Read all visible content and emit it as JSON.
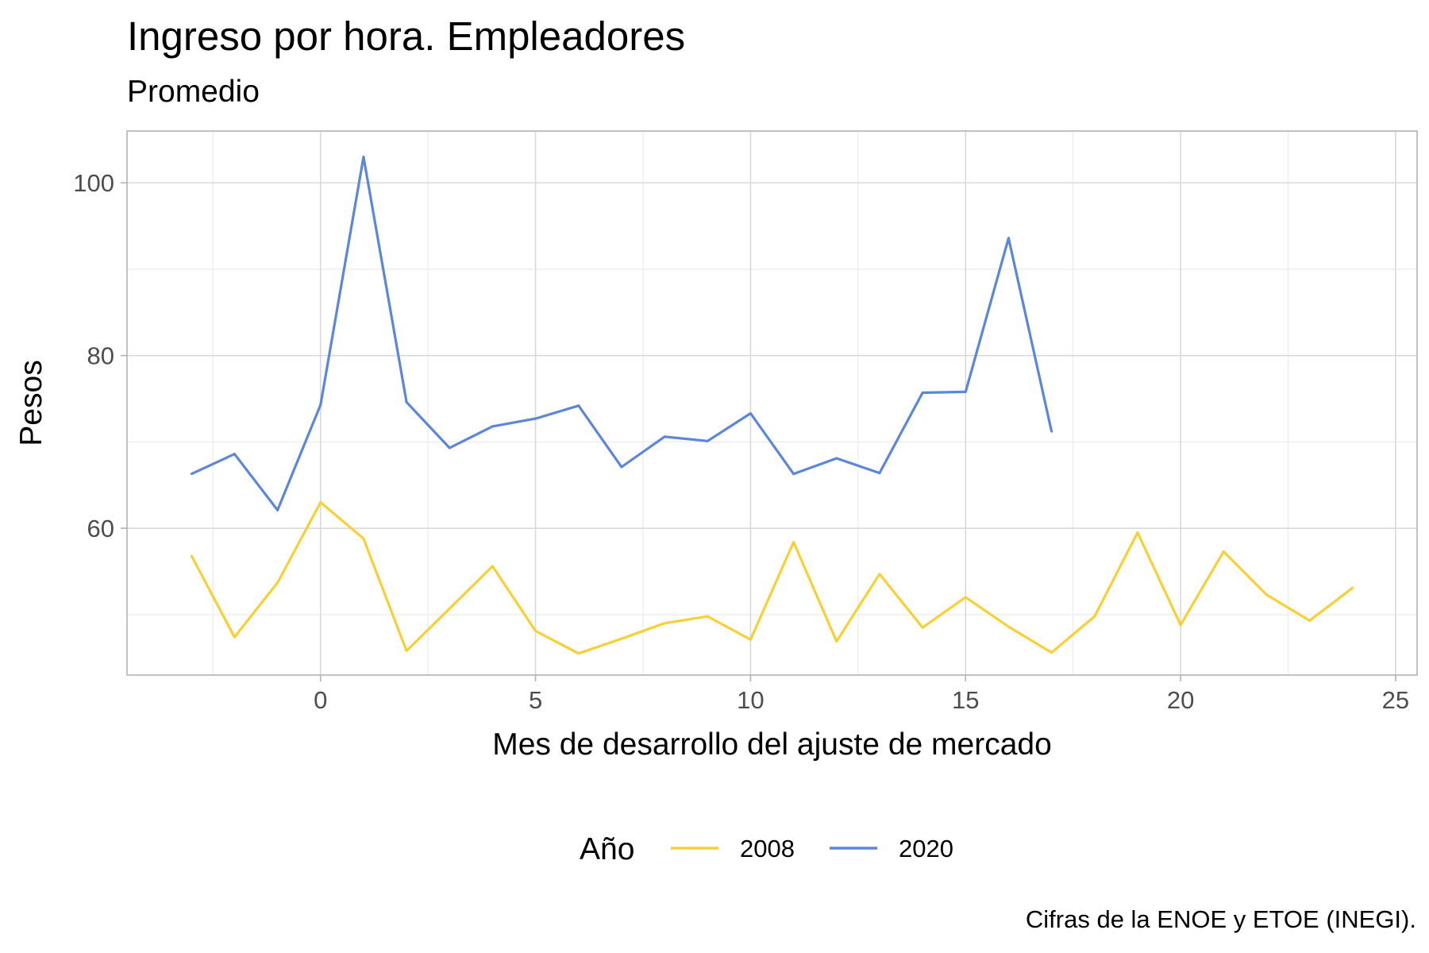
{
  "chart_data": {
    "type": "line",
    "title": "Ingreso por hora. Empleadores",
    "subtitle": "Promedio",
    "xlabel": "Mes de desarrollo del ajuste de mercado",
    "ylabel": "Pesos",
    "caption": "Cifras de la ENOE y ETOE (INEGI).",
    "xlim": [
      -4.5,
      25.5
    ],
    "ylim": [
      43,
      106
    ],
    "x_ticks": [
      0,
      5,
      10,
      15,
      20,
      25
    ],
    "x_tick_labels": [
      "0",
      "5",
      "10",
      "15",
      "20",
      "25"
    ],
    "y_ticks": [
      60,
      80,
      100
    ],
    "y_tick_labels": [
      "60",
      "80",
      "100"
    ],
    "grid": true,
    "legend": {
      "title": "Año",
      "position": "bottom"
    },
    "series": [
      {
        "name": "2008",
        "color": "#F9D033",
        "x": [
          -3,
          -2,
          -1,
          0,
          1,
          2,
          3,
          4,
          5,
          6,
          7,
          8,
          9,
          10,
          11,
          12,
          13,
          14,
          15,
          16,
          17,
          18,
          19,
          20,
          21,
          22,
          23,
          24
        ],
        "values": [
          56.8,
          47.4,
          53.7,
          63.0,
          58.8,
          45.8,
          50.7,
          55.6,
          48.1,
          45.5,
          47.2,
          49.0,
          49.8,
          47.1,
          58.4,
          46.9,
          54.7,
          48.5,
          52.0,
          48.6,
          45.6,
          49.8,
          59.5,
          48.8,
          57.3,
          52.3,
          49.3,
          53.1
        ]
      },
      {
        "name": "2020",
        "color": "#5B86DB",
        "x": [
          -3,
          -2,
          -1,
          0,
          1,
          2,
          3,
          4,
          5,
          6,
          7,
          8,
          9,
          10,
          11,
          12,
          13,
          14,
          15,
          16,
          17
        ],
        "values": [
          66.3,
          68.6,
          62.1,
          74.3,
          103.0,
          74.6,
          69.3,
          71.8,
          72.7,
          74.2,
          67.1,
          70.6,
          70.1,
          73.3,
          66.3,
          68.1,
          66.4,
          75.7,
          75.8,
          93.6,
          71.2
        ]
      }
    ]
  }
}
